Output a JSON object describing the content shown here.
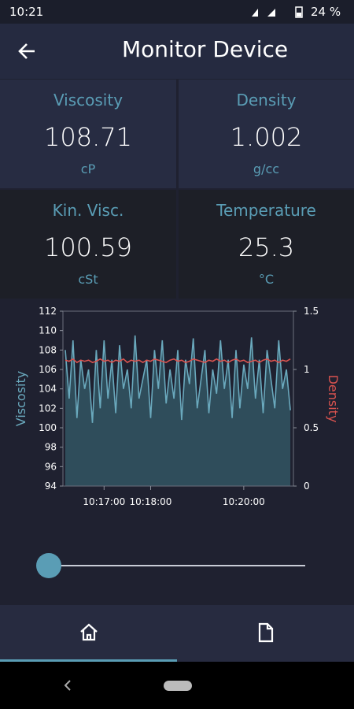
{
  "status_bar": {
    "time": "10:21",
    "battery": "24 %"
  },
  "header": {
    "title": "Monitor Device"
  },
  "tiles": [
    {
      "label": "Viscosity",
      "value": "108.71",
      "unit": "cP"
    },
    {
      "label": "Density",
      "value": "1.002",
      "unit": "g/cc"
    },
    {
      "label": "Kin. Visc.",
      "value": "100.59",
      "unit": "cSt"
    },
    {
      "label": "Temperature",
      "value": "25.3",
      "unit": "°C"
    }
  ],
  "chart_data": {
    "type": "area",
    "ylabel": "Viscosity",
    "y2label": "Density",
    "x": [
      "10:16:10",
      "10:16:15",
      "10:16:20",
      "10:16:25",
      "10:16:30",
      "10:16:35",
      "10:16:40",
      "10:16:45",
      "10:16:50",
      "10:16:55",
      "10:17:00",
      "10:17:05",
      "10:17:10",
      "10:17:15",
      "10:17:20",
      "10:17:25",
      "10:17:30",
      "10:17:35",
      "10:17:40",
      "10:17:45",
      "10:17:50",
      "10:17:55",
      "10:18:00",
      "10:18:05",
      "10:18:10",
      "10:18:15",
      "10:18:20",
      "10:18:25",
      "10:18:30",
      "10:18:35",
      "10:18:40",
      "10:18:45",
      "10:18:50",
      "10:18:55",
      "10:19:00",
      "10:19:05",
      "10:19:10",
      "10:19:15",
      "10:19:20",
      "10:19:25",
      "10:19:30",
      "10:19:35",
      "10:19:40",
      "10:19:45",
      "10:19:50",
      "10:19:55",
      "10:20:00",
      "10:20:05",
      "10:20:10",
      "10:20:15",
      "10:20:20",
      "10:20:25",
      "10:20:30",
      "10:20:35",
      "10:20:40",
      "10:20:45",
      "10:20:50",
      "10:20:55",
      "10:21:00"
    ],
    "series": [
      {
        "name": "Viscosity",
        "color": "#6aa9bd",
        "fill": "#2f4d5b",
        "values": [
          108,
          103,
          109,
          101,
          107,
          104,
          106,
          100.5,
          108,
          102,
          109,
          103,
          107,
          101.5,
          108.5,
          104,
          106,
          102,
          109.5,
          103,
          105,
          107,
          101,
          108,
          104,
          109,
          102.5,
          106,
          103,
          108,
          100.8,
          107,
          104.5,
          109.2,
          102,
          105,
          108,
          101.5,
          106,
          103.5,
          109,
          104,
          107,
          101,
          108,
          102,
          106.5,
          104,
          109.3,
          103,
          107,
          101.5,
          108,
          105,
          102,
          109,
          104,
          106,
          101.8
        ]
      },
      {
        "name": "Density",
        "color": "#d9534f",
        "axis": "y2",
        "values": [
          1.08,
          1.07,
          1.09,
          1.06,
          1.08,
          1.07,
          1.08,
          1.06,
          1.07,
          1.09,
          1.07,
          1.08,
          1.06,
          1.08,
          1.07,
          1.09,
          1.06,
          1.08,
          1.07,
          1.08,
          1.06,
          1.08,
          1.07,
          1.09,
          1.08,
          1.07,
          1.06,
          1.08,
          1.09,
          1.07,
          1.08,
          1.06,
          1.07,
          1.09,
          1.08,
          1.07,
          1.06,
          1.08,
          1.07,
          1.09,
          1.07,
          1.08,
          1.06,
          1.08,
          1.09,
          1.07,
          1.08,
          1.06,
          1.07,
          1.08,
          1.06,
          1.08,
          1.09,
          1.07,
          1.08,
          1.06,
          1.08,
          1.07,
          1.09
        ]
      }
    ],
    "xlim": [
      "10:16:07",
      "10:21:04"
    ],
    "xticks": [
      "10:17:00",
      "10:18:00",
      "10:20:00"
    ],
    "ylim": [
      94,
      112
    ],
    "yticks": [
      94,
      96,
      98,
      100,
      102,
      104,
      106,
      108,
      110,
      112
    ],
    "y2lim": [
      0,
      1.5
    ],
    "y2ticks": [
      0,
      0.5,
      1,
      1.5
    ]
  }
}
